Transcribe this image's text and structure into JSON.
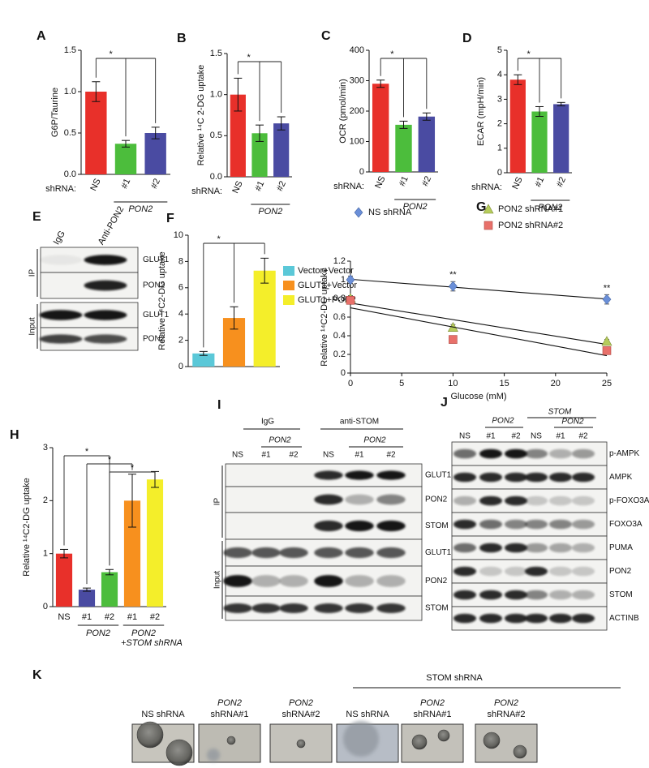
{
  "chart_data": [
    {
      "label": "A",
      "type": "bar",
      "ylabel": "G6P/Taurine",
      "xlabel": "shRNA:",
      "categories": [
        "NS",
        "#1",
        "#2"
      ],
      "values": [
        1.0,
        0.37,
        0.5
      ],
      "errors": [
        0.12,
        0.04,
        0.07
      ],
      "colors": [
        "#e8302a",
        "#4cbd3c",
        "#4a4ba2"
      ],
      "ylim": [
        0,
        1.5
      ],
      "yticks": [
        {
          "value": 0,
          "label": "0.0"
        },
        0.5,
        {
          "value": 1,
          "label": "1.0"
        },
        1.5
      ],
      "group_labels": [
        "PON2"
      ],
      "annotations": [
        "*"
      ]
    },
    {
      "label": "B",
      "type": "bar",
      "ylabel": "Relative ¹⁴C 2-DG uptake",
      "xlabel": "shRNA:",
      "categories": [
        "NS",
        "#1",
        "#2"
      ],
      "values": [
        1.0,
        0.53,
        0.65
      ],
      "errors": [
        0.2,
        0.1,
        0.08
      ],
      "colors": [
        "#e8302a",
        "#4cbd3c",
        "#4a4ba2"
      ],
      "ylim": [
        0,
        1.5
      ],
      "yticks": [
        {
          "value": 0,
          "label": "0.0"
        },
        0.5,
        {
          "value": 1,
          "label": "1.0"
        },
        1.5
      ],
      "group_labels": [
        "PON2"
      ],
      "annotations": [
        "*"
      ]
    },
    {
      "label": "C",
      "type": "bar",
      "ylabel": "OCR (pmol/min)",
      "xlabel": "shRNA:",
      "categories": [
        "NS",
        "#1",
        "#2"
      ],
      "values": [
        290,
        155,
        182
      ],
      "errors": [
        12,
        12,
        12
      ],
      "colors": [
        "#e8302a",
        "#4cbd3c",
        "#4a4ba2"
      ],
      "ylim": [
        0,
        400
      ],
      "yticks": [
        0,
        100,
        200,
        300,
        400
      ],
      "group_labels": [
        "PON2"
      ],
      "annotations": [
        "*"
      ]
    },
    {
      "label": "D",
      "type": "bar",
      "ylabel": "ECAR (mpH/min)",
      "xlabel": "shRNA:",
      "categories": [
        "NS",
        "#1",
        "#2"
      ],
      "values": [
        3.8,
        2.5,
        2.8
      ],
      "errors": [
        0.2,
        0.2,
        0.07
      ],
      "colors": [
        "#e8302a",
        "#4cbd3c",
        "#4a4ba2"
      ],
      "ylim": [
        0,
        5
      ],
      "yticks": [
        0,
        1,
        2,
        3,
        4,
        5
      ],
      "group_labels": [
        "PON2"
      ],
      "annotations": [
        "*"
      ]
    },
    {
      "label": "F",
      "type": "bar",
      "ylabel": "Relative ¹⁴C2-DG uptake",
      "categories": [
        "Vector+Vector",
        "GLUT1+Vector",
        "GLUT1+PON2"
      ],
      "values": [
        1.0,
        3.7,
        7.3
      ],
      "errors": [
        0.15,
        0.85,
        0.95
      ],
      "colors": [
        "#5bc8d8",
        "#f7901e",
        "#f4ee2a"
      ],
      "ylim": [
        0,
        10
      ],
      "yticks": [
        0,
        2,
        4,
        6,
        8,
        10
      ],
      "legend": "right",
      "annotations": [
        "*"
      ]
    },
    {
      "label": "G",
      "type": "scatter",
      "ylabel": "Relative ¹⁴C2-DG uptake",
      "xlabel": "Glucose (mM)",
      "x": [
        0,
        10,
        25
      ],
      "series": [
        {
          "name": "NS shRNA",
          "color": "#6a8fd8",
          "marker": "diamond",
          "values": [
            1.0,
            0.93,
            0.79
          ],
          "errors": [
            0.04,
            0.05,
            0.05
          ]
        },
        {
          "name": "PON2 shRNA#1",
          "color": "#b6cc5c",
          "marker": "triangle",
          "values": [
            0.8,
            0.49,
            0.34
          ],
          "errors": [
            0.03,
            0.03,
            0.02
          ]
        },
        {
          "name": "PON2 shRNA#2",
          "color": "#e8706a",
          "marker": "square",
          "values": [
            0.78,
            0.36,
            0.24
          ],
          "errors": [
            0.03,
            0.02,
            0.02
          ]
        }
      ],
      "xlim": [
        0,
        25
      ],
      "xticks": [
        0,
        5,
        10,
        15,
        20,
        25
      ],
      "ylim": [
        0,
        1.2
      ],
      "yticks": [
        0,
        0.2,
        0.4,
        0.6,
        0.8,
        1,
        1.2
      ],
      "annotations": [
        {
          "x": 10,
          "text": "**"
        },
        {
          "x": 25,
          "text": "**"
        }
      ],
      "legend": "top"
    },
    {
      "label": "H",
      "type": "bar",
      "ylabel": "Relative ¹⁴C2-DG uptake",
      "categories": [
        "NS",
        "#1",
        "#2",
        "#1",
        "#2"
      ],
      "values": [
        1.0,
        0.32,
        0.65,
        2.0,
        2.4
      ],
      "errors": [
        0.08,
        0.03,
        0.05,
        0.5,
        0.15
      ],
      "colors": [
        "#e8302a",
        "#4a4ba2",
        "#4cbd3c",
        "#f7901e",
        "#f4ee2a"
      ],
      "ylim": [
        0,
        3
      ],
      "yticks": [
        0,
        1,
        2,
        3
      ],
      "group_labels": [
        "PON2",
        "PON2",
        "+STOM shRNA"
      ],
      "annotations": [
        "*",
        "*",
        "*"
      ]
    }
  ],
  "blots": {
    "E": {
      "label": "E",
      "lanes": [
        "IgG",
        "Anti-PON2"
      ],
      "groups": [
        "IP",
        "Input"
      ],
      "rows": [
        "GLUT1",
        "PON2",
        "GLUT1",
        "PON2"
      ]
    },
    "I": {
      "label": "I",
      "headers": [
        "IgG",
        "anti-STOM"
      ],
      "sublabels": [
        "PON2",
        "PON2"
      ],
      "lanes": [
        "NS",
        "#1",
        "#2",
        "NS",
        "#1",
        "#2"
      ],
      "groups": [
        "IP",
        "Input"
      ],
      "rows": [
        "GLUT1",
        "PON2",
        "STOM",
        "GLUT1",
        "PON2",
        "STOM"
      ]
    },
    "J": {
      "label": "J",
      "headers": [
        "PON2",
        "STOM",
        "PON2"
      ],
      "lanes": [
        "NS",
        "#1",
        "#2",
        "NS",
        "#1",
        "#2"
      ],
      "rows": [
        "p-AMPK",
        "AMPK",
        "p-FOXO3A",
        "FOXO3A",
        "PUMA",
        "PON2",
        "STOM",
        "ACTINB"
      ]
    }
  },
  "panel_k": {
    "label": "K",
    "header": "STOM shRNA",
    "images": [
      {
        "lines": [
          "NS shRNA"
        ]
      },
      {
        "lines": [
          "PON2",
          "shRNA#1"
        ]
      },
      {
        "lines": [
          "PON2",
          "shRNA#2"
        ]
      },
      {
        "lines": [
          "NS shRNA"
        ]
      },
      {
        "lines": [
          "PON2",
          "shRNA#1"
        ]
      },
      {
        "lines": [
          "PON2",
          "shRNA#2"
        ]
      }
    ]
  }
}
